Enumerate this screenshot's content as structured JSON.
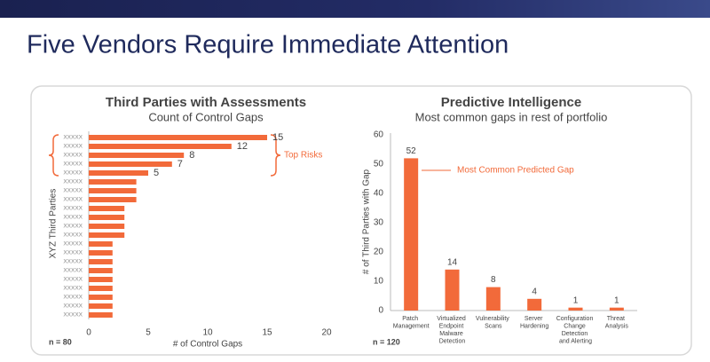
{
  "page_title": "Five Vendors Require Immediate Attention",
  "chart_data": [
    {
      "type": "hbar",
      "title": "Third Parties with Assessments",
      "subtitle": "Count of Control Gaps",
      "categories": [
        "XXXXX",
        "XXXXX",
        "XXXXX",
        "XXXXX",
        "XXXXX",
        "XXXXX",
        "XXXXX",
        "XXXXX",
        "XXXXX",
        "XXXXX",
        "XXXXX",
        "XXXXX",
        "XXXXX",
        "XXXXX",
        "XXXXX",
        "XXXXX",
        "XXXXX",
        "XXXXX",
        "XXXXX",
        "XXXXX",
        "XXXXX"
      ],
      "values": [
        15,
        12,
        8,
        7,
        5,
        4,
        4,
        4,
        3,
        3,
        3,
        3,
        2,
        2,
        2,
        2,
        2,
        2,
        2,
        2,
        2
      ],
      "value_labels": [
        "15",
        "12",
        "8",
        "7",
        "5",
        null,
        null,
        null,
        null,
        null,
        null,
        null,
        null,
        null,
        null,
        null,
        null,
        null,
        null,
        null,
        null
      ],
      "color": "#f26a3a",
      "xlim": [
        0,
        20
      ],
      "xticks": [
        0,
        5,
        10,
        15,
        20
      ],
      "xlabel": "# of Control Gaps",
      "ylabel": "XYZ Third Parties",
      "annotations": [
        "Top Risks",
        "n = 80"
      ]
    },
    {
      "type": "bar",
      "title": "Predictive Intelligence",
      "subtitle": "Most common gaps in rest of portfolio",
      "categories": [
        "Patch Management",
        "Virtualized Endpoint Malware Detection",
        "Vulnerability Scans",
        "Server Hardening",
        "Configuration Change Detection and Alerting",
        "Threat Analysis"
      ],
      "values": [
        52,
        14,
        8,
        4,
        1,
        1
      ],
      "color": "#f26a3a",
      "ylim": [
        0,
        60
      ],
      "yticks": [
        0,
        10,
        20,
        30,
        40,
        50,
        60
      ],
      "ylabel": "# of Third Parties with Gap",
      "annotations": [
        "Most Common Predicted Gap",
        "n = 120"
      ]
    }
  ]
}
